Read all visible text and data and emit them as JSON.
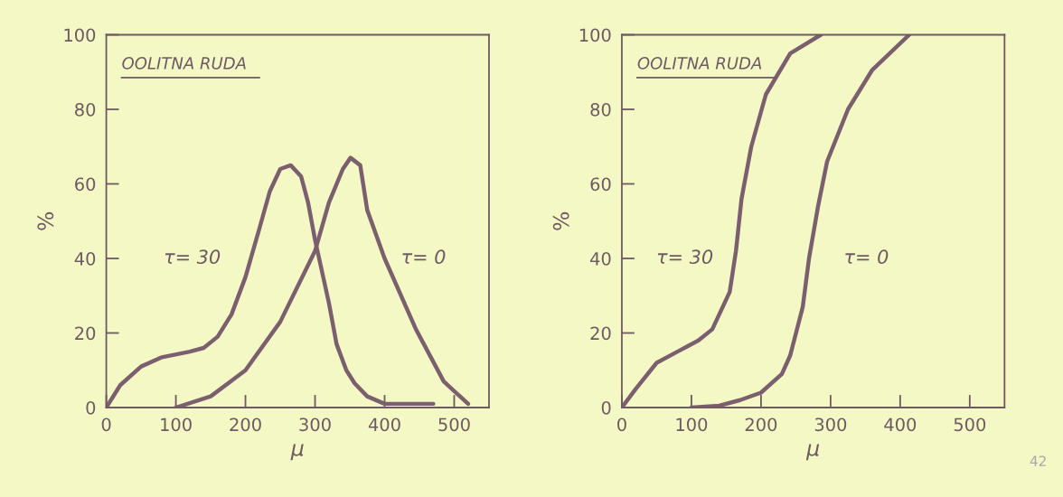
{
  "chart_data": [
    {
      "type": "line",
      "title": "OOLITNA RUDA",
      "xlabel": "μ",
      "ylabel": "%",
      "xlim": [
        0,
        550
      ],
      "ylim": [
        0,
        100
      ],
      "xticks": [
        0,
        100,
        200,
        300,
        400,
        500
      ],
      "yticks": [
        0,
        20,
        40,
        60,
        80,
        100
      ],
      "grid": false,
      "legend": false,
      "series": [
        {
          "name": "τ= 30",
          "color": "#7b5f6e",
          "x": [
            0,
            20,
            50,
            80,
            120,
            140,
            160,
            180,
            200,
            220,
            235,
            250,
            265,
            280,
            290,
            300,
            320,
            331,
            345,
            357,
            375,
            400,
            430,
            470
          ],
          "values": [
            0,
            6,
            11,
            13.5,
            15,
            16,
            19,
            25,
            35,
            48,
            58,
            64,
            65,
            62,
            55,
            45,
            28,
            17,
            10,
            6.5,
            3,
            1,
            1,
            1
          ]
        },
        {
          "name": "τ= 0",
          "color": "#7b5f6e",
          "x": [
            100,
            150,
            200,
            250,
            300,
            320,
            340,
            351,
            365,
            375,
            400,
            445,
            485,
            520
          ],
          "values": [
            0,
            3,
            10,
            23,
            42,
            55,
            64,
            67,
            65,
            53,
            40,
            21,
            7,
            1
          ]
        }
      ]
    },
    {
      "type": "line",
      "title": "OOLITNA RUDA",
      "xlabel": "μ",
      "ylabel": "%",
      "xlim": [
        0,
        550
      ],
      "ylim": [
        0,
        100
      ],
      "xticks": [
        0,
        100,
        200,
        300,
        400,
        500
      ],
      "yticks": [
        0,
        20,
        40,
        60,
        80,
        100
      ],
      "grid": false,
      "legend": false,
      "annotations": [
        "42"
      ],
      "series": [
        {
          "name": "τ= 30",
          "color": "#7b5f6e",
          "x": [
            0,
            20,
            50,
            80,
            110,
            130,
            155,
            164,
            172,
            186,
            207,
            242,
            286
          ],
          "values": [
            0,
            5,
            12,
            15,
            18,
            21,
            31,
            42,
            56,
            70,
            84,
            95,
            100
          ]
        },
        {
          "name": "τ= 0",
          "color": "#7b5f6e",
          "x": [
            100,
            140,
            170,
            200,
            230,
            242,
            260,
            269,
            282,
            295,
            325,
            360,
            413
          ],
          "values": [
            0,
            0.5,
            2,
            4,
            9,
            14,
            27,
            40,
            54,
            66,
            80,
            90.6,
            100
          ]
        }
      ]
    }
  ]
}
